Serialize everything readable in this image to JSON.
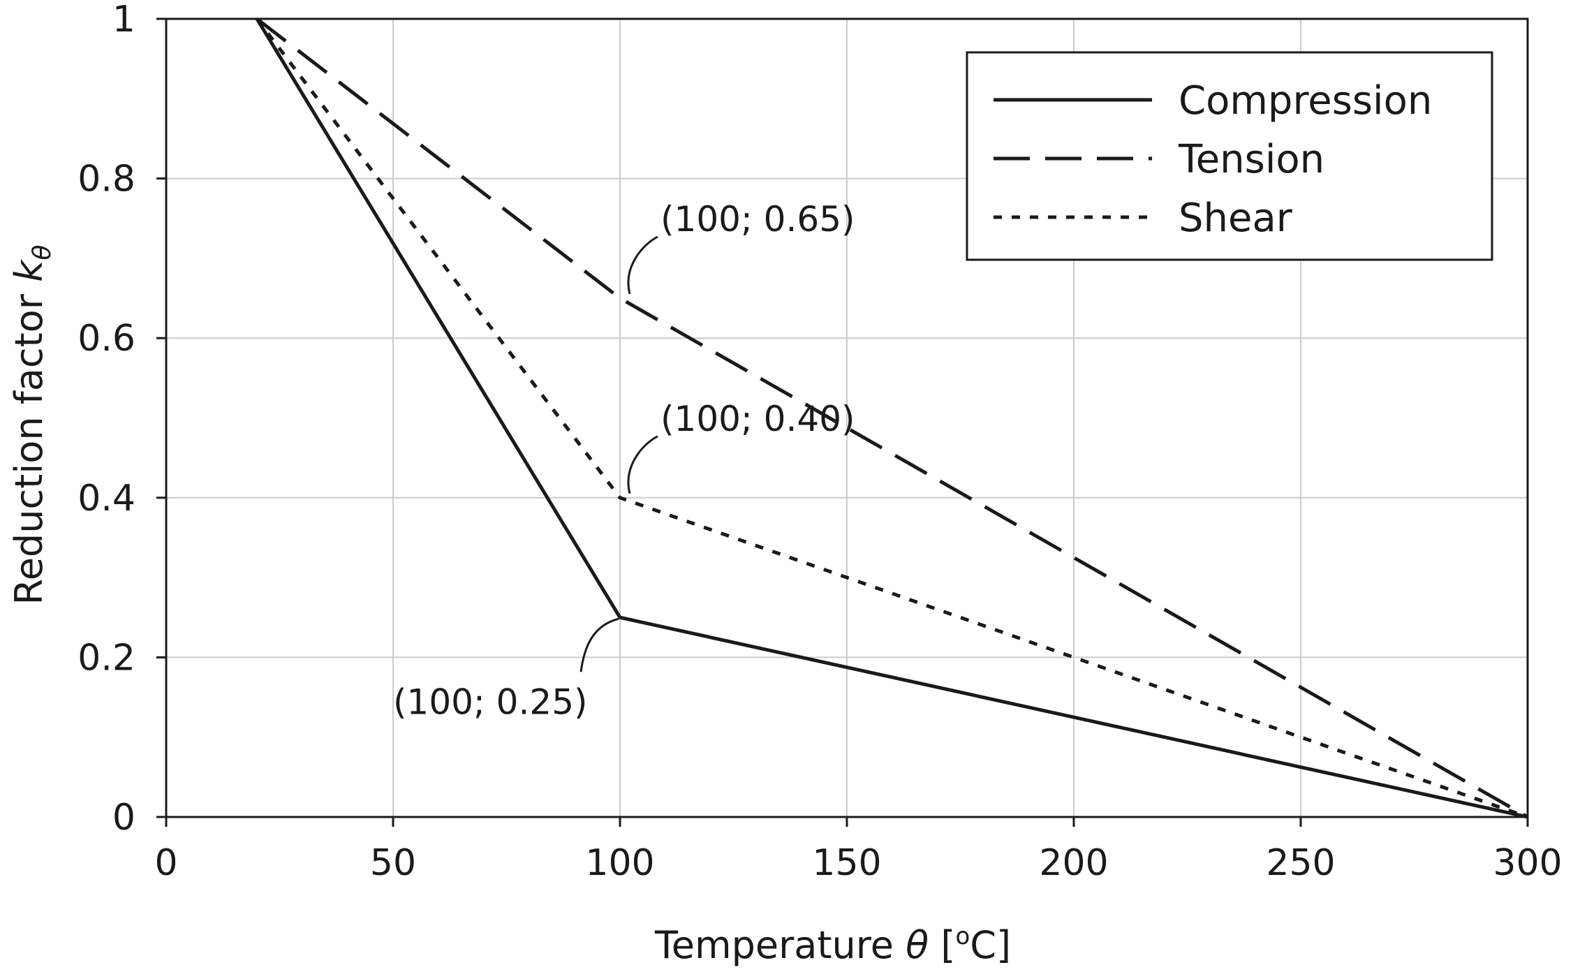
{
  "chart_data": {
    "type": "line",
    "title": "",
    "xlabel": "Temperature",
    "xlabel_symbol": "θ",
    "xlabel_unit_open": "[",
    "xlabel_unit_sup": "o",
    "xlabel_unit_close": "C]",
    "ylabel": "Reduction factor",
    "ylabel_symbol": "k",
    "ylabel_subscript": "θ",
    "xlim": [
      0,
      300
    ],
    "ylim": [
      0,
      1
    ],
    "xticks": [
      0,
      50,
      100,
      150,
      200,
      250,
      300
    ],
    "xtick_labels": [
      "0",
      "50",
      "100",
      "150",
      "200",
      "250",
      "300"
    ],
    "yticks": [
      0,
      0.2,
      0.4,
      0.6,
      0.8,
      1
    ],
    "ytick_labels": [
      "0",
      "0.2",
      "0.4",
      "0.6",
      "0.8",
      "1"
    ],
    "grid": true,
    "legend_position": "top-right",
    "series": [
      {
        "name": "Compression",
        "style": "solid",
        "color": "#1a1a1a",
        "x": [
          20,
          100,
          300
        ],
        "y": [
          1.0,
          0.25,
          0.0
        ]
      },
      {
        "name": "Tension",
        "style": "dashed",
        "color": "#1a1a1a",
        "x": [
          20,
          100,
          300
        ],
        "y": [
          1.0,
          0.65,
          0.0
        ]
      },
      {
        "name": "Shear",
        "style": "dotted",
        "color": "#1a1a1a",
        "x": [
          20,
          100,
          300
        ],
        "y": [
          1.0,
          0.4,
          0.0
        ]
      }
    ],
    "annotations": [
      {
        "text": "(100; 0.65)",
        "x": 100,
        "y": 0.65,
        "series": "Tension",
        "placement": "upper-right"
      },
      {
        "text": "(100; 0.40)",
        "x": 100,
        "y": 0.4,
        "series": "Shear",
        "placement": "upper-right"
      },
      {
        "text": "(100; 0.25)",
        "x": 100,
        "y": 0.25,
        "series": "Compression",
        "placement": "lower-left"
      }
    ]
  }
}
